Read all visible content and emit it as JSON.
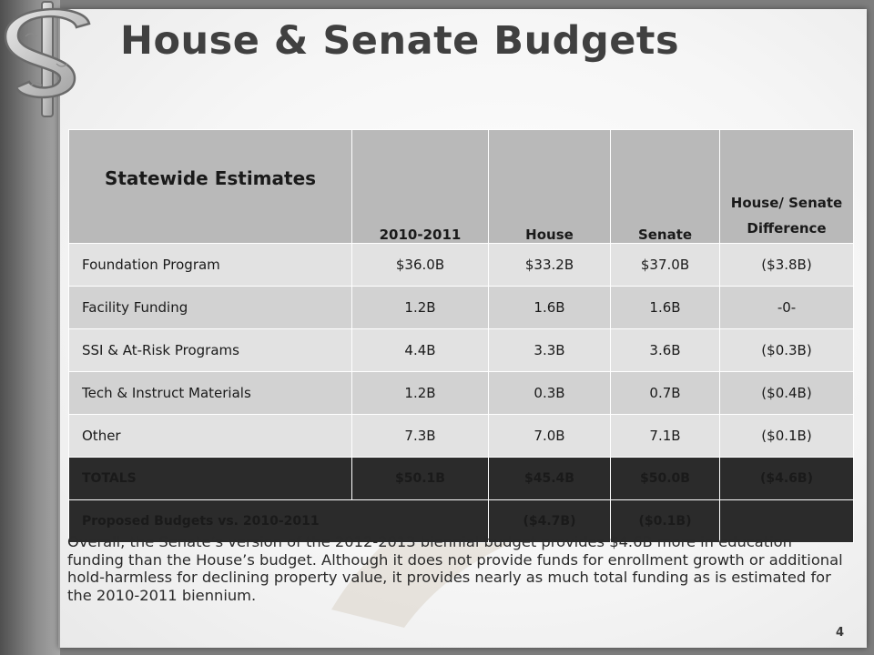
{
  "slide": {
    "title": "House & Senate Budgets",
    "page_number": "4",
    "logo_icon": "dollar-sign-puzzle-icon",
    "summary": "Overall, the Senate’s version of the 2012-2013 biennial budget provides $4.6B more in education funding than the House’s budget.  Although it does not provide funds for enrollment growth or additional hold-harmless for declining property value, it provides nearly as much total funding as is estimated for the 2010-2011 biennium."
  },
  "table": {
    "headers": {
      "col0": "Statewide Estimates",
      "col1": "2010-2011",
      "col2": "House",
      "col3": "Senate",
      "col4": "House/ Senate Difference"
    },
    "rows": [
      {
        "label": "Foundation Program",
        "base": "$36.0B",
        "house": "$33.2B",
        "senate": "$37.0B",
        "diff": "($3.8B)"
      },
      {
        "label": "Facility Funding",
        "base": "1.2B",
        "house": "1.6B",
        "senate": "1.6B",
        "diff": "-0-"
      },
      {
        "label": "SSI & At-Risk Programs",
        "base": "4.4B",
        "house": "3.3B",
        "senate": "3.6B",
        "diff": "($0.3B)"
      },
      {
        "label": "Tech & Instruct Materials",
        "base": "1.2B",
        "house": "0.3B",
        "senate": "0.7B",
        "diff": "($0.4B)"
      },
      {
        "label": "Other",
        "base": "7.3B",
        "house": "7.0B",
        "senate": "7.1B",
        "diff": "($0.1B)"
      }
    ],
    "totals": {
      "label": "TOTALS",
      "base": "$50.1B",
      "house": "$45.4B",
      "senate": "$50.0B",
      "diff": "($4.6B)"
    },
    "proposed": {
      "label": "Proposed Budgets vs. 2010-2011",
      "house": "($4.7B)",
      "senate": "($0.1B)",
      "diff": ""
    }
  }
}
